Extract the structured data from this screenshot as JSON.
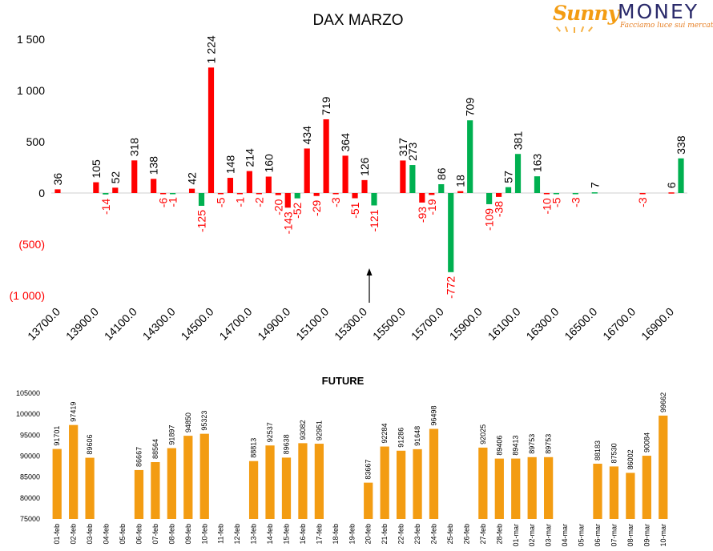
{
  "logo": {
    "brand_part1": "Sunny",
    "brand_part2": "MONEY",
    "tagline": "Facciamo luce sui mercati",
    "colors": {
      "sunny": "#f39c12",
      "money": "#2b2b6b",
      "tagline": "#e67e22"
    }
  },
  "chart_data": [
    {
      "type": "bar",
      "title": "DAX MARZO",
      "xlabel": "",
      "ylabel": "",
      "ylim": [
        -1000,
        1500
      ],
      "y_ticks": [
        {
          "value": 1500,
          "label": "1 500"
        },
        {
          "value": 1000,
          "label": "1 000"
        },
        {
          "value": 500,
          "label": "500"
        },
        {
          "value": 0,
          "label": "0"
        },
        {
          "value": -500,
          "label": "(500)"
        },
        {
          "value": -1000,
          "label": "(1 000)"
        }
      ],
      "x_tick_labels": [
        "13700.0",
        "13900.0",
        "14100.0",
        "14300.0",
        "14500.0",
        "14700.0",
        "14900.0",
        "15100.0",
        "15300.0",
        "15500.0",
        "15700.0",
        "15900.0",
        "16100.0",
        "16300.0",
        "16500.0",
        "16700.0",
        "16900.0"
      ],
      "x_tick_first_strike": 13700,
      "x_tick_step": 200,
      "strike_step": 50,
      "strikes": [
        13700,
        13750,
        13800,
        13850,
        13900,
        13950,
        14000,
        14050,
        14100,
        14150,
        14200,
        14250,
        14300,
        14350,
        14400,
        14450,
        14500,
        14550,
        14600,
        14650,
        14700,
        14750,
        14800,
        14850,
        14900,
        14950,
        15000,
        15050,
        15100,
        15150,
        15200,
        15250,
        15300,
        15350,
        15400,
        15450,
        15500,
        15550,
        15600,
        15650,
        15700,
        15750,
        15800,
        15850,
        15900,
        15950,
        16000,
        16050,
        16100,
        16150,
        16200,
        16250,
        16300,
        16350,
        16400,
        16450,
        16500,
        16550,
        16600,
        16650,
        16700,
        16750,
        16800,
        16850,
        16900,
        16950
      ],
      "series": [
        {
          "color": "#ff0000",
          "values": [
            36,
            null,
            null,
            null,
            105,
            null,
            52,
            null,
            318,
            null,
            138,
            -6,
            null,
            null,
            42,
            null,
            1224,
            -5,
            148,
            -1,
            214,
            -2,
            160,
            -20,
            -143,
            null,
            434,
            -29,
            719,
            -3,
            364,
            -51,
            126,
            null,
            null,
            null,
            317,
            null,
            -93,
            -19,
            null,
            null,
            18,
            null,
            null,
            null,
            -38,
            null,
            null,
            null,
            null,
            -10,
            null,
            null,
            null,
            null,
            null,
            null,
            null,
            null,
            null,
            -3,
            null,
            null,
            6,
            null
          ],
          "labels": [
            "36",
            null,
            null,
            null,
            "105",
            null,
            "52",
            null,
            "318",
            null,
            "138",
            "-6",
            null,
            null,
            "42",
            null,
            "1 224",
            "-5",
            "148",
            "-1",
            "214",
            "-2",
            "160",
            "-20",
            "-143",
            null,
            "434",
            "-29",
            "719",
            "-3",
            "364",
            "-51",
            "126",
            null,
            null,
            null,
            "317",
            null,
            "-93",
            "-19",
            null,
            null,
            "18",
            null,
            null,
            null,
            "-38",
            null,
            null,
            null,
            null,
            "-10",
            null,
            null,
            null,
            null,
            null,
            null,
            null,
            null,
            null,
            "-3",
            null,
            null,
            "6",
            null
          ]
        },
        {
          "color": "#00b050",
          "values": [
            null,
            null,
            null,
            null,
            null,
            -14,
            null,
            null,
            null,
            null,
            null,
            null,
            -1,
            null,
            null,
            -125,
            null,
            null,
            null,
            null,
            null,
            null,
            null,
            null,
            null,
            -52,
            null,
            null,
            null,
            null,
            null,
            null,
            null,
            -121,
            null,
            null,
            null,
            273,
            null,
            null,
            86,
            -772,
            null,
            709,
            null,
            -109,
            null,
            57,
            381,
            null,
            163,
            null,
            -5,
            null,
            -3,
            null,
            7,
            null,
            null,
            null,
            null,
            null,
            null,
            null,
            null,
            338
          ],
          "labels": [
            null,
            null,
            null,
            null,
            null,
            "-14",
            null,
            null,
            null,
            null,
            null,
            null,
            "-1",
            null,
            null,
            "-125",
            null,
            null,
            null,
            null,
            null,
            null,
            null,
            null,
            null,
            "-52",
            null,
            null,
            null,
            null,
            null,
            null,
            null,
            "-121",
            null,
            null,
            null,
            "273",
            null,
            null,
            "86",
            "-772",
            null,
            "709",
            null,
            "-109",
            null,
            "57",
            "381",
            null,
            "163",
            null,
            "-5",
            null,
            "-3",
            null,
            "7",
            null,
            null,
            null,
            null,
            null,
            null,
            null,
            null,
            "338"
          ]
        }
      ],
      "label_colors": {
        "positive": "#000000",
        "negative": "#ff0000"
      },
      "annotation": {
        "type": "arrow",
        "strike": 15325,
        "direction": "up"
      },
      "grid": false,
      "legend": "none"
    },
    {
      "type": "bar",
      "title": "FUTURE",
      "xlabel": "",
      "ylabel": "",
      "ylim": [
        75000,
        105000
      ],
      "y_ticks": [
        75000,
        80000,
        85000,
        90000,
        95000,
        100000,
        105000
      ],
      "color": "#f39c12",
      "categories": [
        "01-feb",
        "02-feb",
        "03-feb",
        "04-feb",
        "05-feb",
        "06-feb",
        "07-feb",
        "08-feb",
        "09-feb",
        "10-feb",
        "11-feb",
        "12-feb",
        "13-feb",
        "14-feb",
        "15-feb",
        "16-feb",
        "17-feb",
        "18-feb",
        "19-feb",
        "20-feb",
        "21-feb",
        "22-feb",
        "23-feb",
        "24-feb",
        "25-feb",
        "26-feb",
        "27-feb",
        "28-feb",
        "01-mar",
        "02-mar",
        "03-mar",
        "04-mar",
        "05-mar",
        "06-mar",
        "07-mar",
        "08-mar",
        "09-mar",
        "10-mar"
      ],
      "values": [
        91701,
        97419,
        89606,
        null,
        null,
        86667,
        88564,
        91897,
        94850,
        95323,
        null,
        null,
        88813,
        92537,
        89638,
        93082,
        92951,
        null,
        null,
        83667,
        92284,
        91286,
        91648,
        96498,
        null,
        null,
        92025,
        89406,
        89413,
        89753,
        89753,
        null,
        null,
        88183,
        87530,
        86002,
        90084,
        99662
      ],
      "grid": false,
      "legend": "none"
    }
  ]
}
